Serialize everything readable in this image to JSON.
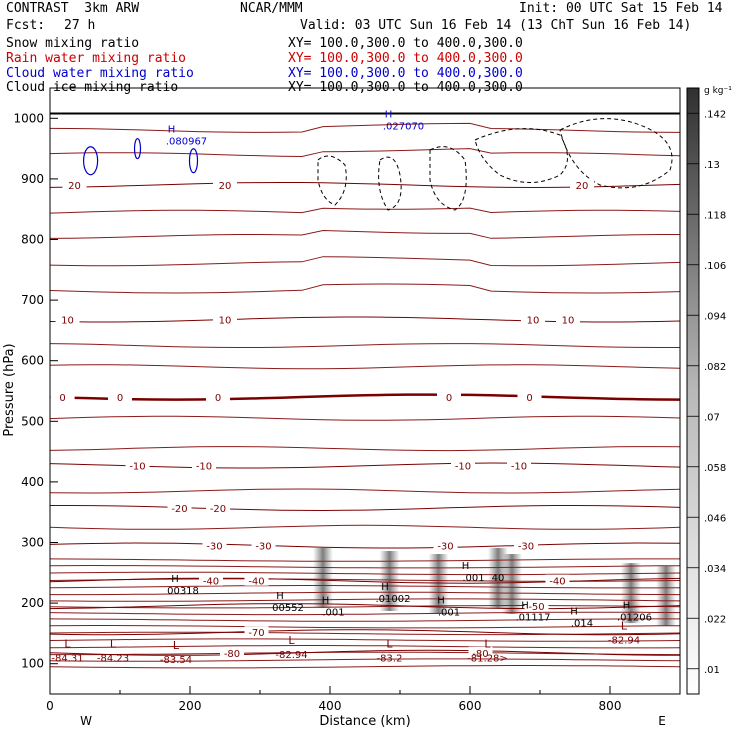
{
  "header": {
    "model": "CONTRAST  3km ARW",
    "org": "NCAR/MMM",
    "init": "Init: 00 UTC Sat 15 Feb 14",
    "fcst_label": "Fcst:",
    "fcst_value": "27 h",
    "valid": "Valid: 03 UTC Sun 16 Feb 14 (13 ChT Sun 16 Feb 14)"
  },
  "fields": [
    {
      "name": "Snow mixing ratio",
      "xy": "XY= 100.0,300.0 to 400.0,300.0",
      "color": "#000000"
    },
    {
      "name": "Rain water mixing ratio",
      "xy": "XY= 100.0,300.0 to 400.0,300.0",
      "color": "#cc0000"
    },
    {
      "name": "Cloud water mixing ratio",
      "xy": "XY= 100.0,300.0 to 400.0,300.0",
      "color": "#0000cc"
    },
    {
      "name": "Cloud ice mixing ratio",
      "xy": "XY= 100.0,300.0 to 400.0,300.0",
      "color": "#000000"
    }
  ],
  "chart_data": {
    "type": "cross-section",
    "xlabel": "Distance (km)",
    "ylabel": "Pressure (hPa)",
    "xlim": [
      0,
      900
    ],
    "ylim": [
      1050,
      50
    ],
    "x_ticks": [
      0,
      200,
      400,
      600,
      800
    ],
    "y_ticks": [
      100,
      200,
      300,
      400,
      500,
      600,
      700,
      800,
      900,
      1000
    ],
    "x_end_labels": {
      "left": "W",
      "right": "E"
    },
    "colorbar": {
      "unit": "g kg⁻¹",
      "ticks": [
        ".142",
        ".13",
        ".118",
        ".106",
        ".094",
        ".082",
        ".07",
        ".058",
        ".046",
        ".034",
        ".022",
        ".01"
      ],
      "values": [
        0.142,
        0.13,
        0.118,
        0.106,
        0.094,
        0.082,
        0.07,
        0.058,
        0.046,
        0.034,
        0.022,
        0.01
      ]
    },
    "temperature_contours": [
      {
        "label": "-80",
        "p": 118,
        "label_x": [
          260,
          615
        ]
      },
      {
        "label": "-70",
        "p": 152,
        "label_x": [
          295
        ]
      },
      {
        "label": "-50",
        "p": 195,
        "label_x": [
          695
        ]
      },
      {
        "label": "-40",
        "p": 237,
        "label_x": [
          230,
          295,
          725
        ]
      },
      {
        "label": "-30",
        "p": 295,
        "label_x": [
          235,
          305,
          565,
          680
        ]
      },
      {
        "label": "-20",
        "p": 357,
        "label_x": [
          185,
          240
        ]
      },
      {
        "label": "-10",
        "p": 427,
        "label_x": [
          125,
          220,
          590,
          670
        ]
      },
      {
        "label": "0",
        "p": 540,
        "label_x": [
          18,
          100,
          240,
          570,
          685
        ],
        "bold": true
      },
      {
        "label": "10",
        "p": 668,
        "label_x": [
          25,
          250,
          690,
          740
        ]
      },
      {
        "label": "20",
        "p": 890,
        "label_x": [
          35,
          250,
          760
        ]
      }
    ],
    "temperature_minima": [
      {
        "label": "-84.31",
        "x": 25,
        "p": 110
      },
      {
        "label": "-84.23",
        "x": 90,
        "p": 110
      },
      {
        "label": "-83.54",
        "x": 180,
        "p": 108
      },
      {
        "label": "-82.94",
        "x": 345,
        "p": 116
      },
      {
        "label": "-83.2",
        "x": 485,
        "p": 110
      },
      {
        "label": "-81.28>",
        "x": 625,
        "p": 110
      },
      {
        "label": "-82.94",
        "x": 820,
        "p": 140
      }
    ],
    "snow_maxima": [
      {
        "label": "00552",
        "x": 340,
        "p": 190
      },
      {
        "label": ".001",
        "x": 405,
        "p": 183
      },
      {
        "label": "00318",
        "x": 190,
        "p": 218
      },
      {
        "label": ".01002",
        "x": 490,
        "p": 205
      },
      {
        "label": ".001",
        "x": 570,
        "p": 183
      },
      {
        "label": ".001",
        "x": 605,
        "p": 240
      },
      {
        "label": "40",
        "x": 640,
        "p": 240
      },
      {
        "label": ".01117",
        "x": 690,
        "p": 175
      },
      {
        "label": ".014",
        "x": 760,
        "p": 165
      },
      {
        "label": ".01206",
        "x": 835,
        "p": 175
      }
    ],
    "cloud_water_maxima": [
      {
        "label": ".080967",
        "x": 195,
        "p": 960
      },
      {
        "label": ".027070",
        "x": 505,
        "p": 985
      }
    ]
  }
}
